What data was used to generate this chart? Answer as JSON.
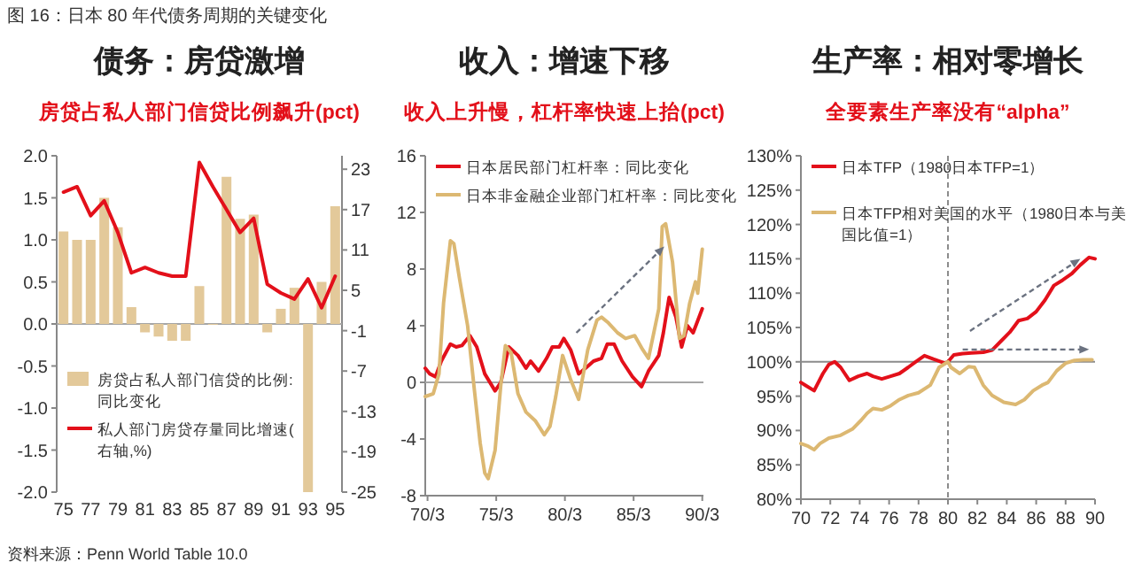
{
  "chart_data": [
    {
      "type": "bar",
      "title": "债务：房贷激增",
      "subtitle": "房贷占私人部门信贷比例飙升(pct)",
      "annotations": [
        "图 16：日本 80 年代债务周期的关键变化",
        "资料来源：Penn World Table 10.0"
      ],
      "categories": [
        "75",
        null,
        "77",
        null,
        "79",
        null,
        "81",
        null,
        "83",
        null,
        "85",
        null,
        "87",
        null,
        "89",
        null,
        "91",
        null,
        "93",
        null,
        "95"
      ],
      "ylim": [
        -2,
        2
      ],
      "yticks": [
        {
          "value": -2,
          "label": "-2.0"
        },
        {
          "value": -1.5,
          "label": "-1.5"
        },
        {
          "value": -1,
          "label": "-1.0"
        },
        {
          "value": -0.5,
          "label": "-0.5"
        },
        {
          "value": 0,
          "label": "0.0"
        },
        {
          "value": 0.5,
          "label": "0.5"
        },
        {
          "value": 1,
          "label": "1.0"
        },
        {
          "value": 1.5,
          "label": "1.5"
        },
        {
          "value": 2,
          "label": "2.0"
        }
      ],
      "y2lim": [
        -25,
        25
      ],
      "y2ticks": [
        -25,
        -19,
        -13,
        -7,
        -1,
        5,
        11,
        17,
        23
      ],
      "legend": "bottom left",
      "ref_lines": [
        {
          "axis": "y",
          "value": 0,
          "color": "#a6a6a6"
        }
      ],
      "series": [
        {
          "name": "房贷占私人部门信贷的比例:同比变化",
          "color": "#e3c99a",
          "values": [
            1.1,
            1.0,
            1.0,
            1.5,
            1.15,
            0.2,
            -0.1,
            -0.15,
            -0.2,
            -0.2,
            0.45,
            -0.01,
            1.75,
            1.25,
            1.3,
            -0.1,
            0.18,
            0.43,
            -2.0,
            0.5,
            1.4
          ]
        },
        {
          "name": "私人部门房贷存量同比增速(右轴,%)",
          "type": "line",
          "axis": "y2",
          "color": "#e3101a",
          "values": [
            19.6,
            20.4,
            16.1,
            18.3,
            13.6,
            7.6,
            8.4,
            7.6,
            7.1,
            7.1,
            24,
            20.4,
            17,
            13.6,
            15.7,
            5.9,
            4.6,
            3.7,
            6.7,
            2.4,
            7.1
          ]
        }
      ]
    },
    {
      "type": "line",
      "title": "收入：增速下移",
      "subtitle": "收入上升慢，杠杆率快速上抬(pct)",
      "xlim": [
        "1970-01",
        "1990-04"
      ],
      "xticks": [
        {
          "value": "1970-03",
          "label": "70/3"
        },
        {
          "value": "1975-03",
          "label": "75/3"
        },
        {
          "value": "1980-03",
          "label": "80/3"
        },
        {
          "value": "1985-03",
          "label": "85/3"
        },
        {
          "value": "1990-03",
          "label": "90/3"
        }
      ],
      "ylim": [
        -8,
        16
      ],
      "yticks": [
        -8,
        -4,
        0,
        4,
        8,
        12,
        16
      ],
      "legend": "top",
      "ref_lines": [
        {
          "axis": "y",
          "value": 0,
          "color": "#a6a6a6"
        }
      ],
      "series": [
        {
          "name": "日本居民部门杠杆率：同比变化",
          "color": "#e3101a",
          "x": [
            "1970-01",
            "1970-05",
            "1970-10",
            "1971-03",
            "1971-11",
            "1972-04",
            "1972-09",
            "1973-04",
            "1973-10",
            "1974-05",
            "1975-02",
            "1975-07",
            "1976-02",
            "1976-10",
            "1977-05",
            "1977-09",
            "1978-04",
            "1978-11",
            "1979-04",
            "1979-10",
            "1980-02",
            "1980-08",
            "1981-03",
            "1981-09",
            "1982-04",
            "1982-11",
            "1983-04",
            "1983-10",
            "1984-05",
            "1985-02",
            "1985-10",
            "1986-04",
            "1987-01",
            "1987-05",
            "1987-10",
            "1988-04",
            "1988-09",
            "1989-02",
            "1989-07",
            "1990-03"
          ],
          "values": [
            1.0,
            0.6,
            0.4,
            1.5,
            2.7,
            2.5,
            2.6,
            3.3,
            2.5,
            0.6,
            -0.6,
            0.0,
            2.5,
            1.9,
            1.0,
            1.5,
            0.8,
            1.7,
            2.5,
            2.5,
            3.1,
            2.3,
            0.6,
            1.0,
            1.5,
            1.7,
            2.7,
            2.7,
            1.5,
            0.4,
            -0.3,
            0.8,
            1.9,
            3.5,
            6.0,
            4.6,
            2.5,
            4.0,
            3.5,
            5.2
          ]
        },
        {
          "name": "日本非金融企业部门杠杆率：同比变化",
          "color": "#dcb872",
          "x": [
            "1970-01",
            "1970-08",
            "1971-01",
            "1971-05",
            "1971-11",
            "1972-02",
            "1972-07",
            "1973-02",
            "1973-08",
            "1974-01",
            "1974-05",
            "1974-08",
            "1975-02",
            "1975-07",
            "1975-11",
            "1976-04",
            "1976-10",
            "1977-05",
            "1978-01",
            "1978-09",
            "1979-02",
            "1979-07",
            "1980-01",
            "1980-08",
            "1981-03",
            "1981-11",
            "1982-07",
            "1982-11",
            "1983-05",
            "1984-01",
            "1984-08",
            "1985-04",
            "1985-11",
            "1986-04",
            "1987-01",
            "1987-04",
            "1987-07",
            "1988-01",
            "1988-07",
            "1988-11",
            "1989-04",
            "1989-09",
            "1989-11",
            "1990-03"
          ],
          "values": [
            -1.0,
            -0.8,
            0.6,
            5.6,
            10.0,
            9.8,
            7.3,
            4.0,
            -0.6,
            -4.3,
            -6.4,
            -6.8,
            -4.8,
            -0.2,
            2.6,
            2.1,
            -0.8,
            -2.1,
            -2.7,
            -3.7,
            -3.1,
            -1.0,
            1.9,
            0.2,
            -1.2,
            2.3,
            4.4,
            4.6,
            4.2,
            3.5,
            3.1,
            3.3,
            2.3,
            1.7,
            5.2,
            11.0,
            11.2,
            8.5,
            3.1,
            3.3,
            5.6,
            7.1,
            6.3,
            9.4
          ]
        }
      ]
    },
    {
      "type": "line",
      "title": "生产率：相对零增长",
      "subtitle": "全要素生产率没有“alpha”",
      "xlim": [
        70,
        90
      ],
      "xticks": [
        70,
        72,
        74,
        76,
        78,
        80,
        82,
        84,
        86,
        88,
        90
      ],
      "ylim": [
        80,
        130
      ],
      "yticks": [
        {
          "value": 80,
          "label": "80%"
        },
        {
          "value": 85,
          "label": "85%"
        },
        {
          "value": 90,
          "label": "90%"
        },
        {
          "value": 95,
          "label": "95%"
        },
        {
          "value": 100,
          "label": "100%"
        },
        {
          "value": 105,
          "label": "105%"
        },
        {
          "value": 110,
          "label": "110%"
        },
        {
          "value": 115,
          "label": "115%"
        },
        {
          "value": 120,
          "label": "120%"
        },
        {
          "value": 125,
          "label": "125%"
        },
        {
          "value": 130,
          "label": "130%"
        }
      ],
      "legend": "top",
      "ref_lines": [
        {
          "axis": "y",
          "value": 100,
          "color": "#8c8c8c"
        },
        {
          "axis": "x",
          "value": 80,
          "color": "#8c8c8c",
          "line_style": "dashed"
        }
      ],
      "series": [
        {
          "name": "日本TFP（1980日本TFP=1）",
          "color": "#e3101a",
          "x": [
            70.0,
            70.3,
            70.9,
            71.5,
            71.9,
            72.3,
            72.7,
            73.3,
            73.9,
            74.5,
            74.9,
            75.5,
            76.1,
            76.7,
            77.3,
            77.8,
            78.4,
            79.0,
            79.8,
            80.0,
            80.4,
            81.0,
            81.6,
            82.4,
            83.0,
            83.6,
            84.2,
            84.8,
            85.4,
            86.0,
            86.6,
            87.2,
            87.8,
            88.4,
            89.0,
            89.6,
            90.0
          ],
          "values": [
            97.0,
            96.6,
            95.8,
            98.3,
            99.6,
            100,
            99.2,
            97.3,
            97.9,
            98.3,
            97.9,
            97.5,
            97.9,
            98.3,
            99.2,
            100,
            100.9,
            100.4,
            99.8,
            100,
            101,
            101.2,
            101.3,
            101.4,
            101.7,
            103,
            104.3,
            106,
            106.3,
            107.3,
            109,
            111.1,
            111.9,
            112.8,
            114.1,
            115.2,
            115
          ]
        },
        {
          "name": "日本TFP相对美国的水平（1980日本与美国比值=1）",
          "color": "#dcb872",
          "x": [
            70.0,
            70.5,
            70.9,
            71.3,
            71.9,
            72.7,
            73.5,
            74.1,
            74.5,
            74.9,
            75.5,
            76.1,
            76.7,
            77.3,
            78.0,
            78.8,
            79.4,
            80.0,
            80.2,
            80.8,
            81.4,
            81.8,
            82.4,
            83.0,
            83.8,
            84.6,
            85.2,
            85.8,
            86.4,
            86.8,
            87.4,
            88.0,
            88.6,
            89.2,
            89.8
          ],
          "values": [
            88.1,
            87.7,
            87.2,
            88.1,
            88.9,
            89.3,
            90.2,
            91.5,
            92.5,
            93.2,
            93.0,
            93.6,
            94.5,
            95.1,
            95.5,
            96.6,
            99.2,
            100,
            99.2,
            98.3,
            99.3,
            99.2,
            96.6,
            95.1,
            94.1,
            93.8,
            94.5,
            95.8,
            96.6,
            97.0,
            98.7,
            99.8,
            100.2,
            100.3,
            100.3
          ]
        }
      ]
    }
  ]
}
